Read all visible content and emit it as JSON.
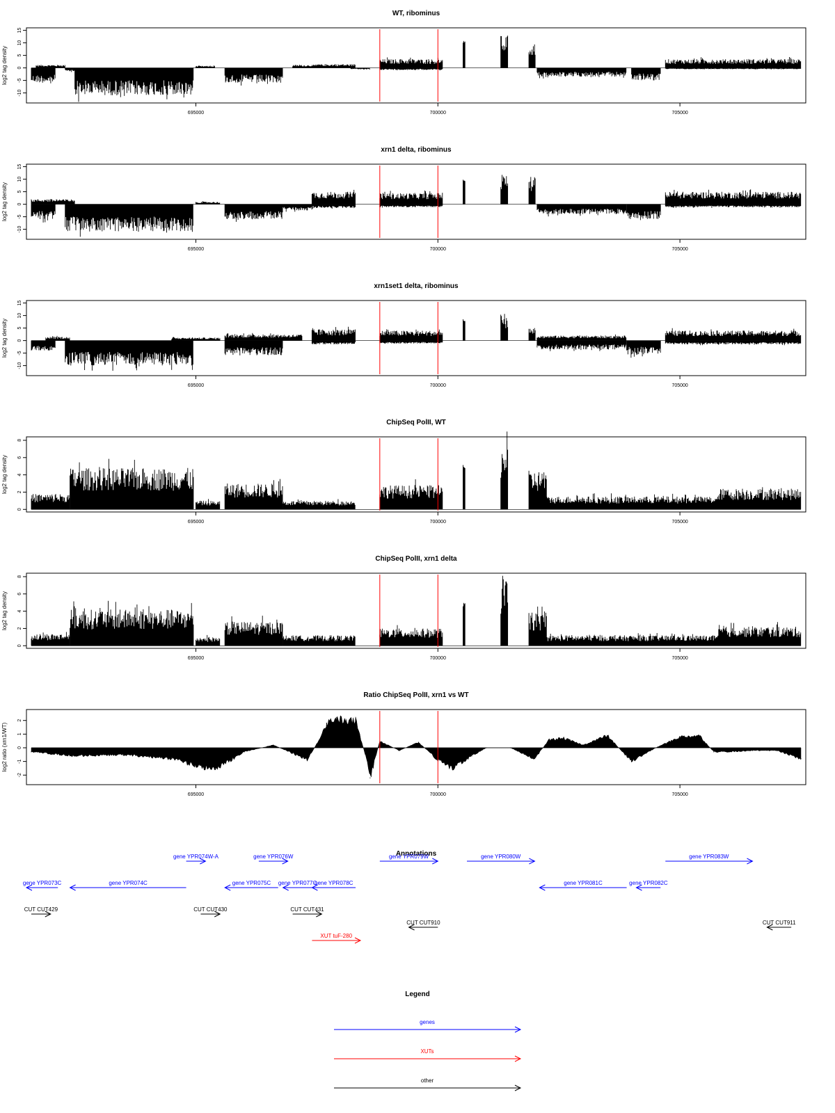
{
  "chart_data": [
    {
      "type": "bar",
      "title": "WT, ribominus",
      "ylabel": "log2 tag density",
      "xlim": [
        691500,
        707600
      ],
      "ylim": [
        -14,
        16
      ],
      "xticks": [
        695000,
        700000,
        705000
      ],
      "yticks": [
        15,
        10,
        5,
        0,
        -5,
        -10
      ],
      "vlines": [
        698800,
        700000
      ],
      "series": [
        {
          "x0": 691600,
          "x1": 692100,
          "sign": -1,
          "level": 6
        },
        {
          "x0": 691700,
          "x1": 692300,
          "sign": 1,
          "level": 1.2
        },
        {
          "x0": 692300,
          "x1": 692500,
          "sign": -1,
          "level": 1.5
        },
        {
          "x0": 692500,
          "x1": 694950,
          "sign": -1,
          "level": 11
        },
        {
          "x0": 695000,
          "x1": 695400,
          "sign": 1,
          "level": 0.8
        },
        {
          "x0": 695600,
          "x1": 696800,
          "sign": -1,
          "level": 6
        },
        {
          "x0": 697000,
          "x1": 697500,
          "sign": 1,
          "level": 1.2
        },
        {
          "x0": 697500,
          "x1": 698300,
          "sign": 1,
          "level": 1.5
        },
        {
          "x0": 698200,
          "x1": 698600,
          "sign": -1,
          "level": 0.6
        },
        {
          "x0": 698800,
          "x1": 700100,
          "sign": 1,
          "level": 3.5
        },
        {
          "x0": 698800,
          "x1": 700100,
          "sign": -1,
          "level": 0.8
        },
        {
          "x0": 700520,
          "x1": 700570,
          "sign": 1,
          "level": 11
        },
        {
          "x0": 701300,
          "x1": 701450,
          "sign": 1,
          "level": 13
        },
        {
          "x0": 701880,
          "x1": 702020,
          "sign": 1,
          "level": 10
        },
        {
          "x0": 702050,
          "x1": 703900,
          "sign": -1,
          "level": 3.5
        },
        {
          "x0": 704000,
          "x1": 704600,
          "sign": -1,
          "level": 5
        },
        {
          "x0": 704700,
          "x1": 707500,
          "sign": 1,
          "level": 3.5
        },
        {
          "x0": 704700,
          "x1": 707500,
          "sign": -1,
          "level": 0.5
        }
      ]
    },
    {
      "type": "bar",
      "title": "xrn1 delta, ribominus",
      "ylabel": "log2 tag density",
      "xlim": [
        691500,
        707600
      ],
      "ylim": [
        -14,
        16
      ],
      "xticks": [
        695000,
        700000,
        705000
      ],
      "yticks": [
        15,
        10,
        5,
        0,
        -5,
        -10
      ],
      "vlines": [
        698800,
        700000
      ],
      "series": [
        {
          "x0": 691600,
          "x1": 692100,
          "sign": -1,
          "level": 6
        },
        {
          "x0": 691600,
          "x1": 692500,
          "sign": 1,
          "level": 2
        },
        {
          "x0": 692300,
          "x1": 694950,
          "sign": -1,
          "level": 11
        },
        {
          "x0": 695000,
          "x1": 695500,
          "sign": 1,
          "level": 1
        },
        {
          "x0": 695600,
          "x1": 696800,
          "sign": -1,
          "level": 6
        },
        {
          "x0": 696800,
          "x1": 697400,
          "sign": -1,
          "level": 2.5
        },
        {
          "x0": 697400,
          "x1": 698300,
          "sign": 1,
          "level": 5
        },
        {
          "x0": 697400,
          "x1": 698300,
          "sign": -1,
          "level": 1.5
        },
        {
          "x0": 698800,
          "x1": 700100,
          "sign": 1,
          "level": 4.5
        },
        {
          "x0": 698800,
          "x1": 700100,
          "sign": -1,
          "level": 1.2
        },
        {
          "x0": 700520,
          "x1": 700570,
          "sign": 1,
          "level": 10
        },
        {
          "x0": 701300,
          "x1": 701450,
          "sign": 1,
          "level": 12
        },
        {
          "x0": 701880,
          "x1": 702020,
          "sign": 1,
          "level": 11
        },
        {
          "x0": 702050,
          "x1": 703900,
          "sign": -1,
          "level": 4
        },
        {
          "x0": 703900,
          "x1": 704600,
          "sign": -1,
          "level": 6
        },
        {
          "x0": 704700,
          "x1": 707500,
          "sign": 1,
          "level": 5
        },
        {
          "x0": 704700,
          "x1": 707500,
          "sign": -1,
          "level": 1.2
        }
      ]
    },
    {
      "type": "bar",
      "title": "xrn1set1 delta, ribominus",
      "ylabel": "log2 tag density",
      "xlim": [
        691500,
        707600
      ],
      "ylim": [
        -14,
        16
      ],
      "xticks": [
        695000,
        700000,
        705000
      ],
      "yticks": [
        15,
        10,
        5,
        0,
        -5,
        -10
      ],
      "vlines": [
        698800,
        700000
      ],
      "series": [
        {
          "x0": 691600,
          "x1": 692100,
          "sign": -1,
          "level": 4
        },
        {
          "x0": 691900,
          "x1": 692400,
          "sign": 1,
          "level": 1.5
        },
        {
          "x0": 692300,
          "x1": 694950,
          "sign": -1,
          "level": 10
        },
        {
          "x0": 694500,
          "x1": 695500,
          "sign": 1,
          "level": 1.2
        },
        {
          "x0": 695600,
          "x1": 696800,
          "sign": -1,
          "level": 6
        },
        {
          "x0": 695600,
          "x1": 697200,
          "sign": 1,
          "level": 2.5
        },
        {
          "x0": 697400,
          "x1": 698300,
          "sign": 1,
          "level": 4.5
        },
        {
          "x0": 697400,
          "x1": 698300,
          "sign": -1,
          "level": 1.5
        },
        {
          "x0": 698800,
          "x1": 700100,
          "sign": 1,
          "level": 4
        },
        {
          "x0": 698800,
          "x1": 700100,
          "sign": -1,
          "level": 1.2
        },
        {
          "x0": 700520,
          "x1": 700570,
          "sign": 1,
          "level": 8.5
        },
        {
          "x0": 701300,
          "x1": 701450,
          "sign": 1,
          "level": 11
        },
        {
          "x0": 701880,
          "x1": 702020,
          "sign": 1,
          "level": 5
        },
        {
          "x0": 702050,
          "x1": 703900,
          "sign": -1,
          "level": 3.5
        },
        {
          "x0": 702050,
          "x1": 703900,
          "sign": 1,
          "level": 2
        },
        {
          "x0": 703900,
          "x1": 704600,
          "sign": -1,
          "level": 5.5
        },
        {
          "x0": 704700,
          "x1": 707500,
          "sign": 1,
          "level": 4
        },
        {
          "x0": 704700,
          "x1": 707500,
          "sign": -1,
          "level": 1.5
        }
      ]
    },
    {
      "type": "bar",
      "title": "ChipSeq PolII, WT",
      "ylabel": "log2 tag density",
      "xlim": [
        691500,
        707600
      ],
      "ylim": [
        -0.3,
        8.4
      ],
      "xticks": [
        695000,
        700000,
        705000
      ],
      "yticks": [
        8,
        6,
        4,
        2,
        0
      ],
      "vlines": [
        698800,
        700000
      ],
      "series": [
        {
          "x0": 691600,
          "x1": 692400,
          "sign": 1,
          "level": 1.8
        },
        {
          "x0": 692400,
          "x1": 694950,
          "sign": 1,
          "level": 4.8
        },
        {
          "x0": 695000,
          "x1": 695500,
          "sign": 1,
          "level": 1
        },
        {
          "x0": 695600,
          "x1": 696800,
          "sign": 1,
          "level": 3
        },
        {
          "x0": 696800,
          "x1": 698300,
          "sign": 1,
          "level": 1
        },
        {
          "x0": 698800,
          "x1": 700100,
          "sign": 1,
          "level": 2.8
        },
        {
          "x0": 700520,
          "x1": 700570,
          "sign": 1,
          "level": 5.2
        },
        {
          "x0": 701300,
          "x1": 701450,
          "sign": 1,
          "level": 7.8
        },
        {
          "x0": 701880,
          "x1": 702250,
          "sign": 1,
          "level": 4.5
        },
        {
          "x0": 702250,
          "x1": 705800,
          "sign": 1,
          "level": 1.5
        },
        {
          "x0": 705800,
          "x1": 707500,
          "sign": 1,
          "level": 2.4
        }
      ]
    },
    {
      "type": "bar",
      "title": "ChipSeq PolII, xrn1 delta",
      "ylabel": "log2 tag density",
      "xlim": [
        691500,
        707600
      ],
      "ylim": [
        -0.3,
        8.4
      ],
      "xticks": [
        695000,
        700000,
        705000
      ],
      "yticks": [
        8,
        6,
        4,
        2,
        0
      ],
      "vlines": [
        698800,
        700000
      ],
      "series": [
        {
          "x0": 691600,
          "x1": 692400,
          "sign": 1,
          "level": 1.4
        },
        {
          "x0": 692400,
          "x1": 694950,
          "sign": 1,
          "level": 4.2
        },
        {
          "x0": 695000,
          "x1": 695500,
          "sign": 1,
          "level": 1
        },
        {
          "x0": 695600,
          "x1": 696800,
          "sign": 1,
          "level": 2.8
        },
        {
          "x0": 696800,
          "x1": 698300,
          "sign": 1,
          "level": 1.2
        },
        {
          "x0": 698800,
          "x1": 700100,
          "sign": 1,
          "level": 2
        },
        {
          "x0": 700520,
          "x1": 700570,
          "sign": 1,
          "level": 5
        },
        {
          "x0": 701300,
          "x1": 701450,
          "sign": 1,
          "level": 7.8
        },
        {
          "x0": 701880,
          "x1": 702250,
          "sign": 1,
          "level": 3.8
        },
        {
          "x0": 702250,
          "x1": 705800,
          "sign": 1,
          "level": 1.2
        },
        {
          "x0": 705800,
          "x1": 707500,
          "sign": 1,
          "level": 2.2
        }
      ]
    },
    {
      "type": "area",
      "title": "Ratio ChipSeq PolII, xrn1 vs WT",
      "ylabel": "log2 ratio (xrn1/WT)",
      "xlim": [
        691500,
        707600
      ],
      "ylim": [
        -2.7,
        2.8
      ],
      "xticks": [
        695000,
        700000,
        705000
      ],
      "yticks": [
        2,
        1,
        0,
        -1,
        -2
      ],
      "vlines": [
        698800,
        700000
      ],
      "x": [
        691600,
        692500,
        693500,
        694500,
        695000,
        695400,
        696000,
        696600,
        697000,
        697300,
        697500,
        697700,
        697900,
        698100,
        698300,
        698500,
        698600,
        698800,
        699200,
        699600,
        700000,
        700300,
        700700,
        701000,
        701500,
        702000,
        702300,
        702600,
        703000,
        703500,
        704000,
        704500,
        705000,
        705400,
        705700,
        706000,
        706500,
        707000,
        707500
      ],
      "values": [
        -0.3,
        -0.6,
        -0.5,
        -0.8,
        -1.3,
        -1.6,
        -0.3,
        0.2,
        -0.4,
        -0.9,
        0.3,
        1.8,
        2.2,
        1.9,
        2.0,
        -0.5,
        -2.2,
        0.5,
        -0.2,
        0.4,
        -0.9,
        -1.5,
        -0.6,
        0.0,
        0.0,
        -0.8,
        0.6,
        0.7,
        0.2,
        0.9,
        -1.0,
        0.0,
        0.8,
        0.9,
        -0.3,
        -0.3,
        -0.2,
        -0.2,
        -0.8
      ]
    }
  ],
  "annotations": {
    "title": "Annotations",
    "xlim": [
      691500,
      707600
    ],
    "features": [
      {
        "label": "gene YPR073C",
        "start": 691500,
        "end": 692150,
        "dir": -1,
        "color": "#0000ff",
        "row": 0
      },
      {
        "label": "gene YPR074C",
        "start": 692400,
        "end": 694800,
        "dir": -1,
        "color": "#0000ff",
        "row": 0
      },
      {
        "label": "gene YPR074W-A",
        "start": 694800,
        "end": 695200,
        "dir": 1,
        "color": "#0000ff",
        "row": -1
      },
      {
        "label": "gene YPR075C",
        "start": 695600,
        "end": 696700,
        "dir": -1,
        "color": "#0000ff",
        "row": 0
      },
      {
        "label": "gene YPR076W",
        "start": 696300,
        "end": 696900,
        "dir": 1,
        "color": "#0000ff",
        "row": -1
      },
      {
        "label": "gene YPR077C",
        "start": 696800,
        "end": 697400,
        "dir": -1,
        "color": "#0000ff",
        "row": 0
      },
      {
        "label": "gene YPR078C",
        "start": 697400,
        "end": 698300,
        "dir": -1,
        "color": "#0000ff",
        "row": 0
      },
      {
        "label": "gene YPR079W",
        "start": 698800,
        "end": 700000,
        "dir": 1,
        "color": "#0000ff",
        "row": -1
      },
      {
        "label": "gene YPR080W",
        "start": 700600,
        "end": 702000,
        "dir": 1,
        "color": "#0000ff",
        "row": -1
      },
      {
        "label": "gene YPR081C",
        "start": 702100,
        "end": 703900,
        "dir": -1,
        "color": "#0000ff",
        "row": 0
      },
      {
        "label": "gene YPR082C",
        "start": 704100,
        "end": 704600,
        "dir": -1,
        "color": "#0000ff",
        "row": 0
      },
      {
        "label": "gene YPR083W",
        "start": 704700,
        "end": 706500,
        "dir": 1,
        "color": "#0000ff",
        "row": -1
      },
      {
        "label": "CUT CUT429",
        "start": 691600,
        "end": 692000,
        "dir": 1,
        "color": "#000000",
        "row": 1
      },
      {
        "label": "CUT CUT430",
        "start": 695100,
        "end": 695500,
        "dir": 1,
        "color": "#000000",
        "row": 1
      },
      {
        "label": "CUT CUT431",
        "start": 697000,
        "end": 697600,
        "dir": 1,
        "color": "#000000",
        "row": 1
      },
      {
        "label": "XUT tuF-280",
        "start": 697400,
        "end": 698400,
        "dir": 1,
        "color": "#ff0000",
        "row": 2
      },
      {
        "label": "CUT CUT910",
        "start": 699400,
        "end": 700000,
        "dir": -1,
        "color": "#000000",
        "row": 1.5
      },
      {
        "label": "CUT CUT911",
        "start": 706800,
        "end": 707300,
        "dir": -1,
        "color": "#000000",
        "row": 1.5
      }
    ]
  },
  "legend": {
    "title": "Legend",
    "items": [
      {
        "label": "genes",
        "color": "#0000ff"
      },
      {
        "label": "XUTs",
        "color": "#ff0000"
      },
      {
        "label": "other",
        "color": "#000000"
      }
    ]
  }
}
